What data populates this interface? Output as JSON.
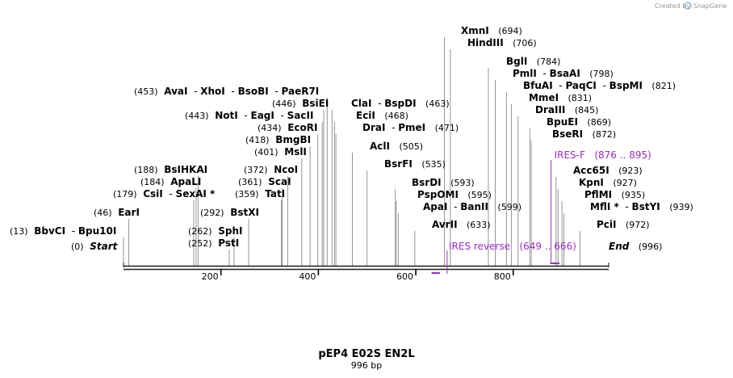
{
  "credit": {
    "text": "Created by",
    "brand": "SnapGene"
  },
  "title": "pEP4 E02S EN2L",
  "subtitle": "996 bp",
  "sequence_length": 996,
  "ticks": [
    {
      "value": 200,
      "label": "200"
    },
    {
      "value": 400,
      "label": "400"
    },
    {
      "value": 600,
      "label": "600"
    },
    {
      "value": 800,
      "label": "800"
    }
  ],
  "site_rows": [
    {
      "pos": "(453)",
      "posSide": "left",
      "names": [
        "AvaI",
        "XhoI",
        "BsoBI",
        "PaeR7I"
      ],
      "sites": [
        418
      ]
    },
    {
      "pos": "(446)",
      "posSide": "left",
      "names": [
        "BsiEI"
      ],
      "sites": [
        411
      ]
    },
    {
      "pos": "(443)",
      "posSide": "left",
      "names": [
        "NotI",
        "EagI",
        "SacII"
      ],
      "sites": [
        408
      ]
    },
    {
      "pos": "(434)",
      "posSide": "left",
      "names": [
        "EcoRI"
      ],
      "sites": [
        399
      ]
    },
    {
      "pos": "(418)",
      "posSide": "left",
      "names": [
        "BmgBI"
      ],
      "sites": [
        383
      ]
    },
    {
      "pos": "(401)",
      "posSide": "left",
      "names": [
        "MslI"
      ],
      "sites": [
        366
      ]
    },
    {
      "pos": "(372)",
      "posSide": "left",
      "names": [
        "NcoI"
      ],
      "sites": [
        337
      ]
    },
    {
      "pos": "(361)",
      "posSide": "left",
      "names": [
        "ScaI"
      ],
      "sites": [
        326
      ]
    },
    {
      "pos": "(359)",
      "posSide": "left",
      "names": [
        "TatI"
      ],
      "sites": [
        324
      ]
    },
    {
      "pos": "(188)",
      "posSide": "left",
      "names": [
        "BsIHKAI"
      ],
      "sites": [
        153
      ]
    },
    {
      "pos": "(184)",
      "posSide": "left",
      "names": [
        "ApaLI"
      ],
      "sites": [
        149
      ]
    },
    {
      "pos": "(179)",
      "posSide": "left",
      "names": [
        "CsiI",
        "SexAI *"
      ],
      "sites": [
        144
      ]
    },
    {
      "pos": "(46)",
      "posSide": "left",
      "names": [
        "EarI"
      ],
      "sites": [
        11
      ]
    },
    {
      "pos": "(292)",
      "posSide": "left",
      "names": [
        "BstXI"
      ],
      "sites": [
        257
      ]
    },
    {
      "pos": "(13)",
      "posSide": "left",
      "names": [
        "BbvCI",
        "Bpu10I"
      ],
      "sites": [
        -22
      ]
    },
    {
      "pos": "(262)",
      "posSide": "left",
      "names": [
        "SphI"
      ],
      "sites": [
        227
      ]
    },
    {
      "pos": "(252)",
      "posSide": "left",
      "names": [
        "PstI"
      ],
      "sites": [
        217
      ]
    },
    {
      "pos": "(694)",
      "posSide": "right",
      "names": [
        "XmnI"
      ],
      "sites": [
        659
      ]
    },
    {
      "pos": "(706)",
      "posSide": "right",
      "names": [
        "HindIII"
      ],
      "sites": [
        671
      ]
    },
    {
      "pos": "(784)",
      "posSide": "right",
      "names": [
        "BglI"
      ],
      "sites": [
        749
      ]
    },
    {
      "pos": "(798)",
      "posSide": "right",
      "names": [
        "PmlI",
        "BsaAI"
      ],
      "sites": [
        763
      ]
    },
    {
      "pos": "(821)",
      "posSide": "right",
      "names": [
        "BfuAI",
        "PaqCI",
        "BspMI"
      ],
      "sites": [
        786
      ]
    },
    {
      "pos": "(831)",
      "posSide": "right",
      "names": [
        "MmeI"
      ],
      "sites": [
        796
      ]
    },
    {
      "pos": "(845)",
      "posSide": "right",
      "names": [
        "DraIII"
      ],
      "sites": [
        810
      ]
    },
    {
      "pos": "(869)",
      "posSide": "right",
      "names": [
        "BpuEI"
      ],
      "sites": [
        834
      ]
    },
    {
      "pos": "(872)",
      "posSide": "right",
      "names": [
        "BseRI"
      ],
      "sites": [
        837
      ]
    },
    {
      "pos": "(463)",
      "posSide": "right",
      "names": [
        "ClaI",
        "BspDI"
      ],
      "sites": [
        428
      ]
    },
    {
      "pos": "(468)",
      "posSide": "right",
      "names": [
        "EciI"
      ],
      "sites": [
        433
      ]
    },
    {
      "pos": "(471)",
      "posSide": "right",
      "names": [
        "DraI",
        "PmeI"
      ],
      "sites": [
        436
      ]
    },
    {
      "pos": "(505)",
      "posSide": "right",
      "names": [
        "AclI"
      ],
      "sites": [
        470
      ]
    },
    {
      "pos": "(535)",
      "posSide": "right",
      "names": [
        "BsrFI"
      ],
      "sites": [
        500
      ]
    },
    {
      "pos": "(593)",
      "posSide": "right",
      "names": [
        "BsrDI"
      ],
      "sites": [
        558
      ]
    },
    {
      "pos": "(595)",
      "posSide": "right",
      "names": [
        "PspOMI"
      ],
      "sites": [
        560
      ]
    },
    {
      "pos": "(599)",
      "posSide": "right",
      "names": [
        "ApaI",
        "BanII"
      ],
      "sites": [
        564
      ]
    },
    {
      "pos": "(633)",
      "posSide": "right",
      "names": [
        "AvrII"
      ],
      "sites": [
        598
      ]
    },
    {
      "pos": "(923)",
      "posSide": "right",
      "names": [
        "Acc65I"
      ],
      "sites": [
        888
      ]
    },
    {
      "pos": "(927)",
      "posSide": "right",
      "names": [
        "KpnI"
      ],
      "sites": [
        892
      ]
    },
    {
      "pos": "(935)",
      "posSide": "right",
      "names": [
        "PflMI"
      ],
      "sites": [
        900
      ]
    },
    {
      "pos": "(939)",
      "posSide": "right",
      "names": [
        "MflI *",
        "BstYI"
      ],
      "sites": [
        904
      ]
    },
    {
      "pos": "(972)",
      "posSide": "right",
      "names": [
        "PciI"
      ],
      "sites": [
        937
      ]
    }
  ],
  "ends": [
    {
      "name": "Start",
      "pos": "(0)",
      "posSide": "left",
      "site": 0
    },
    {
      "name": "End",
      "pos": "(996)",
      "posSide": "right",
      "site": 996
    }
  ],
  "primers": [
    {
      "name": "IRES-F",
      "range": "(876 .. 895)",
      "start": 876,
      "end": 895,
      "strand": "forward",
      "color": "#9c2ec8"
    },
    {
      "name": "IRES reverse",
      "range": "(649 .. 666)",
      "start": 649,
      "end": 666,
      "strand": "reverse",
      "color": "#9c2ec8"
    }
  ],
  "colors": {
    "backbone": "#1a1a1a",
    "connector": "#7a7a7a",
    "primer": "#9c2ec8",
    "text": "#000000"
  }
}
